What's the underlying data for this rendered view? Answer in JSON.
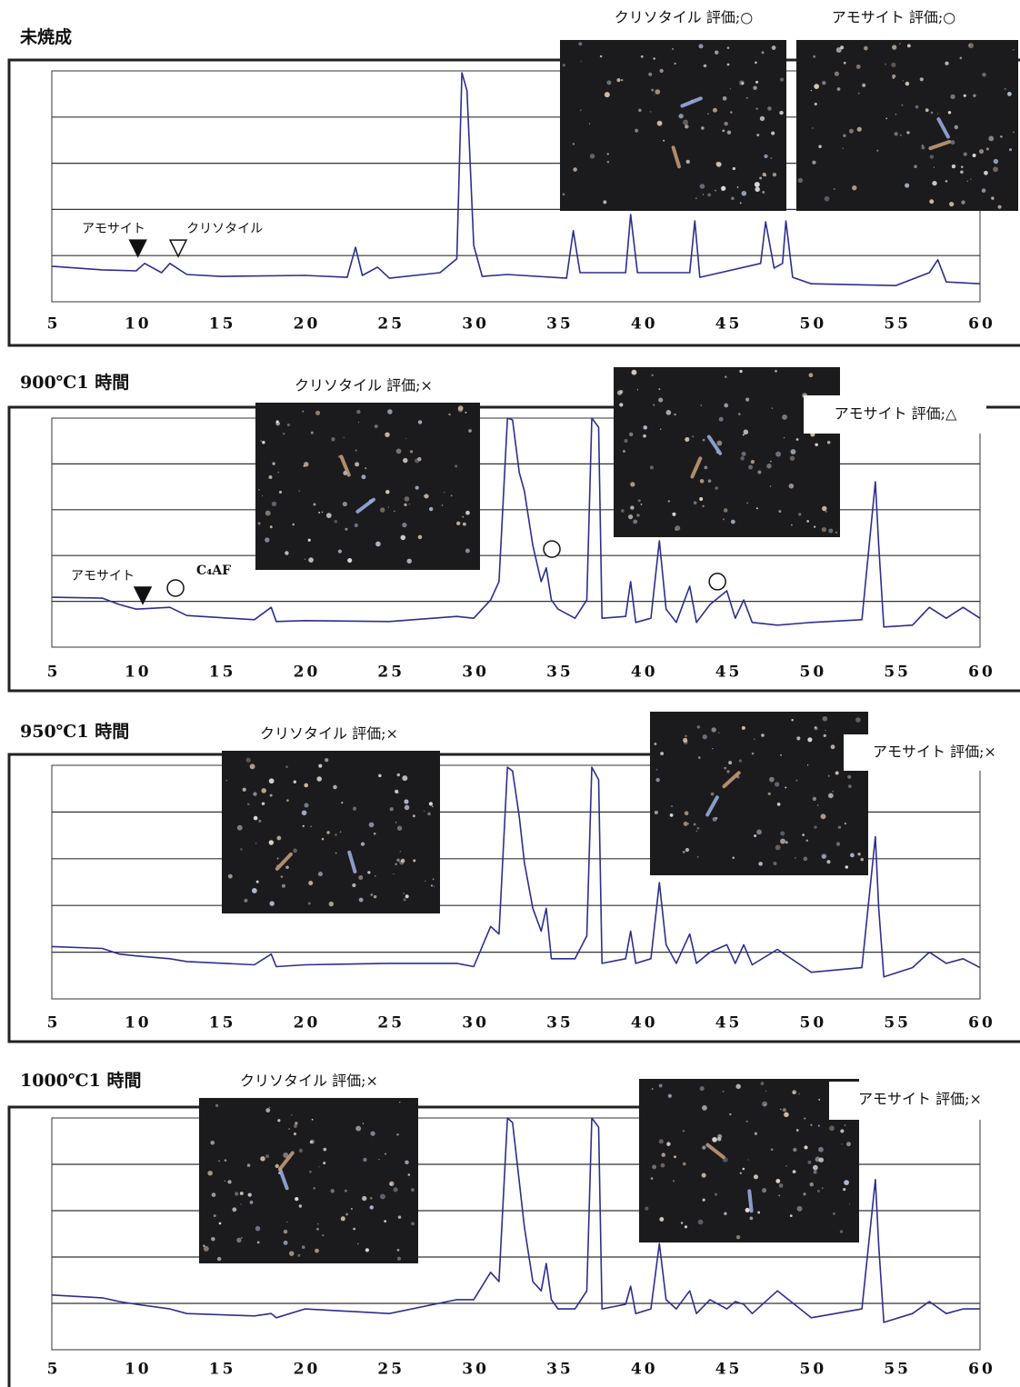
{
  "chart_data": [
    {
      "type": "line",
      "title": "未焼成",
      "color": "#2b2f8f",
      "x": [
        5,
        8,
        10,
        10.5,
        11.5,
        12,
        13,
        15,
        20,
        22.5,
        23,
        23.4,
        24.3,
        25,
        28,
        29,
        29.3,
        29.6,
        30,
        30.5,
        32,
        35.5,
        35.9,
        36.3,
        39,
        39.3,
        39.7,
        42.8,
        43.1,
        43.4,
        47,
        47.3,
        47.8,
        48.3,
        48.5,
        48.9,
        50,
        55,
        57,
        57.5,
        58,
        60
      ],
      "values": [
        0.77,
        0.69,
        0.67,
        0.83,
        0.63,
        0.83,
        0.59,
        0.55,
        0.57,
        0.53,
        1.18,
        0.57,
        0.75,
        0.51,
        0.63,
        0.93,
        4.96,
        4.57,
        1.22,
        0.55,
        0.59,
        0.51,
        1.54,
        0.63,
        0.63,
        1.89,
        0.63,
        0.63,
        1.75,
        0.53,
        0.83,
        1.73,
        0.73,
        0.83,
        1.75,
        0.53,
        0.39,
        0.35,
        0.63,
        0.91,
        0.43,
        0.39
      ],
      "xlim": [
        5,
        60
      ],
      "xticks": [
        5,
        10,
        15,
        20,
        25,
        30,
        35,
        40,
        45,
        50,
        55,
        60
      ],
      "ylim": [
        0,
        5
      ],
      "ygrid": [
        1,
        2,
        3,
        4
      ],
      "annotations": [
        {
          "text": "アモサイト",
          "x": 8.66,
          "y": 1.57
        },
        {
          "text": "クリソタイル",
          "x": 15.24,
          "y": 1.57
        }
      ],
      "markers": [
        {
          "x": 10.1,
          "y": 1.16,
          "shape": "filled-triangle"
        },
        {
          "x": 12.49,
          "y": 1.16,
          "shape": "open-triangle"
        }
      ],
      "insets": [
        {
          "caption": "クリソタイル 評価;○"
        },
        {
          "caption": "アモサイト 評価;○"
        }
      ]
    },
    {
      "type": "line",
      "title": "900℃1 時間",
      "color": "#2b2f8f",
      "x": [
        5,
        8,
        9,
        10,
        12,
        13,
        17,
        18,
        18.3,
        20,
        25,
        29,
        30,
        31,
        31.5,
        32,
        32.3,
        32.7,
        33,
        33.5,
        34,
        34.3,
        34.6,
        35,
        36,
        36.7,
        37,
        37.4,
        37.6,
        39,
        39.3,
        39.6,
        40.5,
        41,
        41.4,
        42,
        42.8,
        43.2,
        44,
        45,
        45.5,
        46,
        46.5,
        48,
        50,
        53,
        53.8,
        54,
        54.3,
        56,
        57,
        58,
        59,
        60
      ],
      "values": [
        1.09,
        1.07,
        0.93,
        0.83,
        0.87,
        0.69,
        0.6,
        0.87,
        0.56,
        0.58,
        0.56,
        0.67,
        0.63,
        1.03,
        1.43,
        5.0,
        4.96,
        3.81,
        3.41,
        2.22,
        1.43,
        1.73,
        1.03,
        0.83,
        0.63,
        1.03,
        5.0,
        4.8,
        0.63,
        0.67,
        1.43,
        0.54,
        0.63,
        2.32,
        0.83,
        0.54,
        1.33,
        0.54,
        0.93,
        1.23,
        0.63,
        1.03,
        0.54,
        0.48,
        0.54,
        0.6,
        3.61,
        2.22,
        0.44,
        0.48,
        0.87,
        0.63,
        0.87,
        0.63
      ],
      "xlim": [
        5,
        60
      ],
      "xticks": [
        5,
        10,
        15,
        20,
        25,
        30,
        35,
        40,
        45,
        50,
        55,
        60
      ],
      "ylim": [
        0,
        5
      ],
      "ygrid": [
        1,
        2,
        3,
        4
      ],
      "annotations": [
        {
          "text": "アモサイト",
          "x": 8.02,
          "y": 1.55
        },
        {
          "text": "C₄AF",
          "x": 14.59,
          "y": 1.67
        }
      ],
      "markers": [
        {
          "x": 10.39,
          "y": 1.13,
          "shape": "filled-triangle"
        },
        {
          "x": 12.33,
          "y": 1.29,
          "shape": "open-circle"
        },
        {
          "x": 34.63,
          "y": 2.14,
          "shape": "open-circle"
        },
        {
          "x": 44.44,
          "y": 1.43,
          "shape": "open-circle"
        }
      ],
      "insets": [
        {
          "caption": "クリソタイル 評価;×"
        },
        {
          "caption": "アモサイト 評価;△"
        }
      ]
    },
    {
      "type": "line",
      "title": "950℃1 時間",
      "color": "#2b2f8f",
      "x": [
        5,
        8,
        9,
        10,
        12,
        13,
        17,
        18,
        18.3,
        20,
        25,
        29,
        30,
        31,
        31.5,
        32,
        32.3,
        32.7,
        33,
        33.5,
        34,
        34.3,
        34.6,
        35,
        36,
        36.7,
        37,
        37.4,
        37.6,
        39,
        39.3,
        39.6,
        40.5,
        41,
        41.4,
        42,
        42.8,
        43.2,
        44,
        45,
        45.5,
        46,
        46.5,
        48,
        50,
        53,
        53.8,
        54,
        54.3,
        56,
        57,
        58,
        59,
        60
      ],
      "values": [
        1.12,
        1.08,
        0.96,
        0.92,
        0.86,
        0.8,
        0.73,
        0.96,
        0.69,
        0.73,
        0.76,
        0.76,
        0.69,
        1.55,
        1.39,
        4.96,
        4.88,
        3.9,
        2.92,
        1.94,
        1.45,
        1.94,
        0.86,
        0.86,
        0.86,
        1.35,
        4.96,
        4.69,
        0.76,
        0.86,
        1.45,
        0.76,
        0.86,
        2.49,
        1.16,
        0.76,
        1.39,
        0.76,
        1.0,
        1.16,
        0.76,
        1.16,
        0.73,
        1.06,
        0.57,
        0.67,
        3.47,
        1.94,
        0.47,
        0.67,
        1.0,
        0.76,
        0.86,
        0.67
      ],
      "xlim": [
        5,
        60
      ],
      "xticks": [
        5,
        10,
        15,
        20,
        25,
        30,
        35,
        40,
        45,
        50,
        55,
        60
      ],
      "ylim": [
        0,
        5
      ],
      "ygrid": [
        1,
        2,
        3,
        4
      ],
      "insets": [
        {
          "caption": "クリソタイル 評価;×"
        },
        {
          "caption": "アモサイト 評価;×"
        }
      ]
    },
    {
      "type": "line",
      "title": "1000℃1 時間",
      "color": "#2b2f8f",
      "x": [
        5,
        8,
        9,
        10,
        12,
        13,
        17,
        18,
        18.3,
        20,
        25,
        29,
        30,
        31,
        31.5,
        32,
        32.3,
        32.7,
        33,
        33.5,
        34,
        34.3,
        34.6,
        35,
        36,
        36.7,
        37,
        37.4,
        37.6,
        39,
        39.3,
        39.6,
        40.5,
        41,
        41.4,
        42,
        42.8,
        43.2,
        44,
        45,
        45.5,
        46,
        46.5,
        48,
        50,
        53,
        53.8,
        54,
        54.3,
        56,
        57,
        58,
        59,
        60
      ],
      "values": [
        1.18,
        1.12,
        1.04,
        0.98,
        0.88,
        0.78,
        0.73,
        0.78,
        0.69,
        0.88,
        0.78,
        1.08,
        1.08,
        1.67,
        1.47,
        5.0,
        4.9,
        3.63,
        2.65,
        1.47,
        1.27,
        1.86,
        1.08,
        0.88,
        0.88,
        1.27,
        5.0,
        4.8,
        0.88,
        0.98,
        1.37,
        0.78,
        0.88,
        2.29,
        1.08,
        0.88,
        1.27,
        0.78,
        1.08,
        0.88,
        1.04,
        0.98,
        0.78,
        1.27,
        0.69,
        0.88,
        3.67,
        2.25,
        0.59,
        0.78,
        1.04,
        0.78,
        0.88,
        0.88
      ],
      "xlim": [
        5,
        60
      ],
      "xticks": [
        5,
        10,
        15,
        20,
        25,
        30,
        35,
        40,
        45,
        50,
        55,
        60
      ],
      "ylim": [
        0,
        5
      ],
      "ygrid": [
        1,
        2,
        3,
        4
      ],
      "insets": [
        {
          "caption": "クリソタイル 評価;×"
        },
        {
          "caption": "アモサイト 評価;×"
        }
      ]
    }
  ]
}
